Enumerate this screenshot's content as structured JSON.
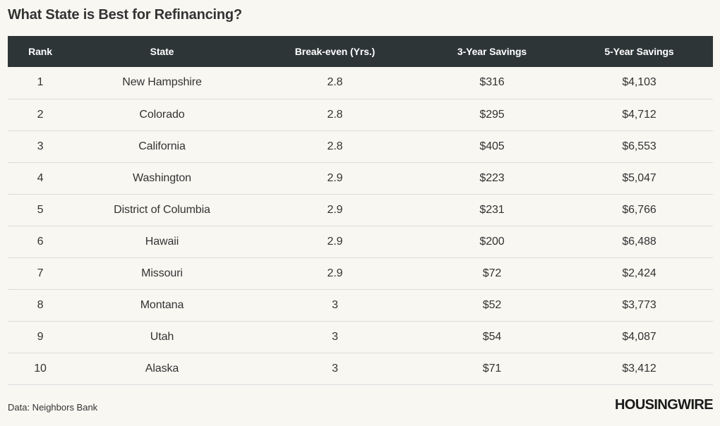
{
  "title": "What State is Best for Refinancing?",
  "source": "Data: Neighbors Bank",
  "logo_text": "HOUSINGWIRE",
  "colors": {
    "header_background": "#2e3537",
    "header_text": "#ffffff",
    "page_background": "#f8f7f2",
    "row_divider": "#dcdcdc"
  },
  "chart_data": {
    "type": "table",
    "title": "What State is Best for Refinancing?",
    "columns": [
      "Rank",
      "State",
      "Break-even (Yrs.)",
      "3-Year Savings",
      "5-Year Savings"
    ],
    "rows": [
      [
        "1",
        "New Hampshire",
        "2.8",
        "$316",
        "$4,103"
      ],
      [
        "2",
        "Colorado",
        "2.8",
        "$295",
        "$4,712"
      ],
      [
        "3",
        "California",
        "2.8",
        "$405",
        "$6,553"
      ],
      [
        "4",
        "Washington",
        "2.9",
        "$223",
        "$5,047"
      ],
      [
        "5",
        "District of Columbia",
        "2.9",
        "$231",
        "$6,766"
      ],
      [
        "6",
        "Hawaii",
        "2.9",
        "$200",
        "$6,488"
      ],
      [
        "7",
        "Missouri",
        "2.9",
        "$72",
        "$2,424"
      ],
      [
        "8",
        "Montana",
        "3",
        "$52",
        "$3,773"
      ],
      [
        "9",
        "Utah",
        "3",
        "$54",
        "$4,087"
      ],
      [
        "10",
        "Alaska",
        "3",
        "$71",
        "$3,412"
      ]
    ]
  }
}
